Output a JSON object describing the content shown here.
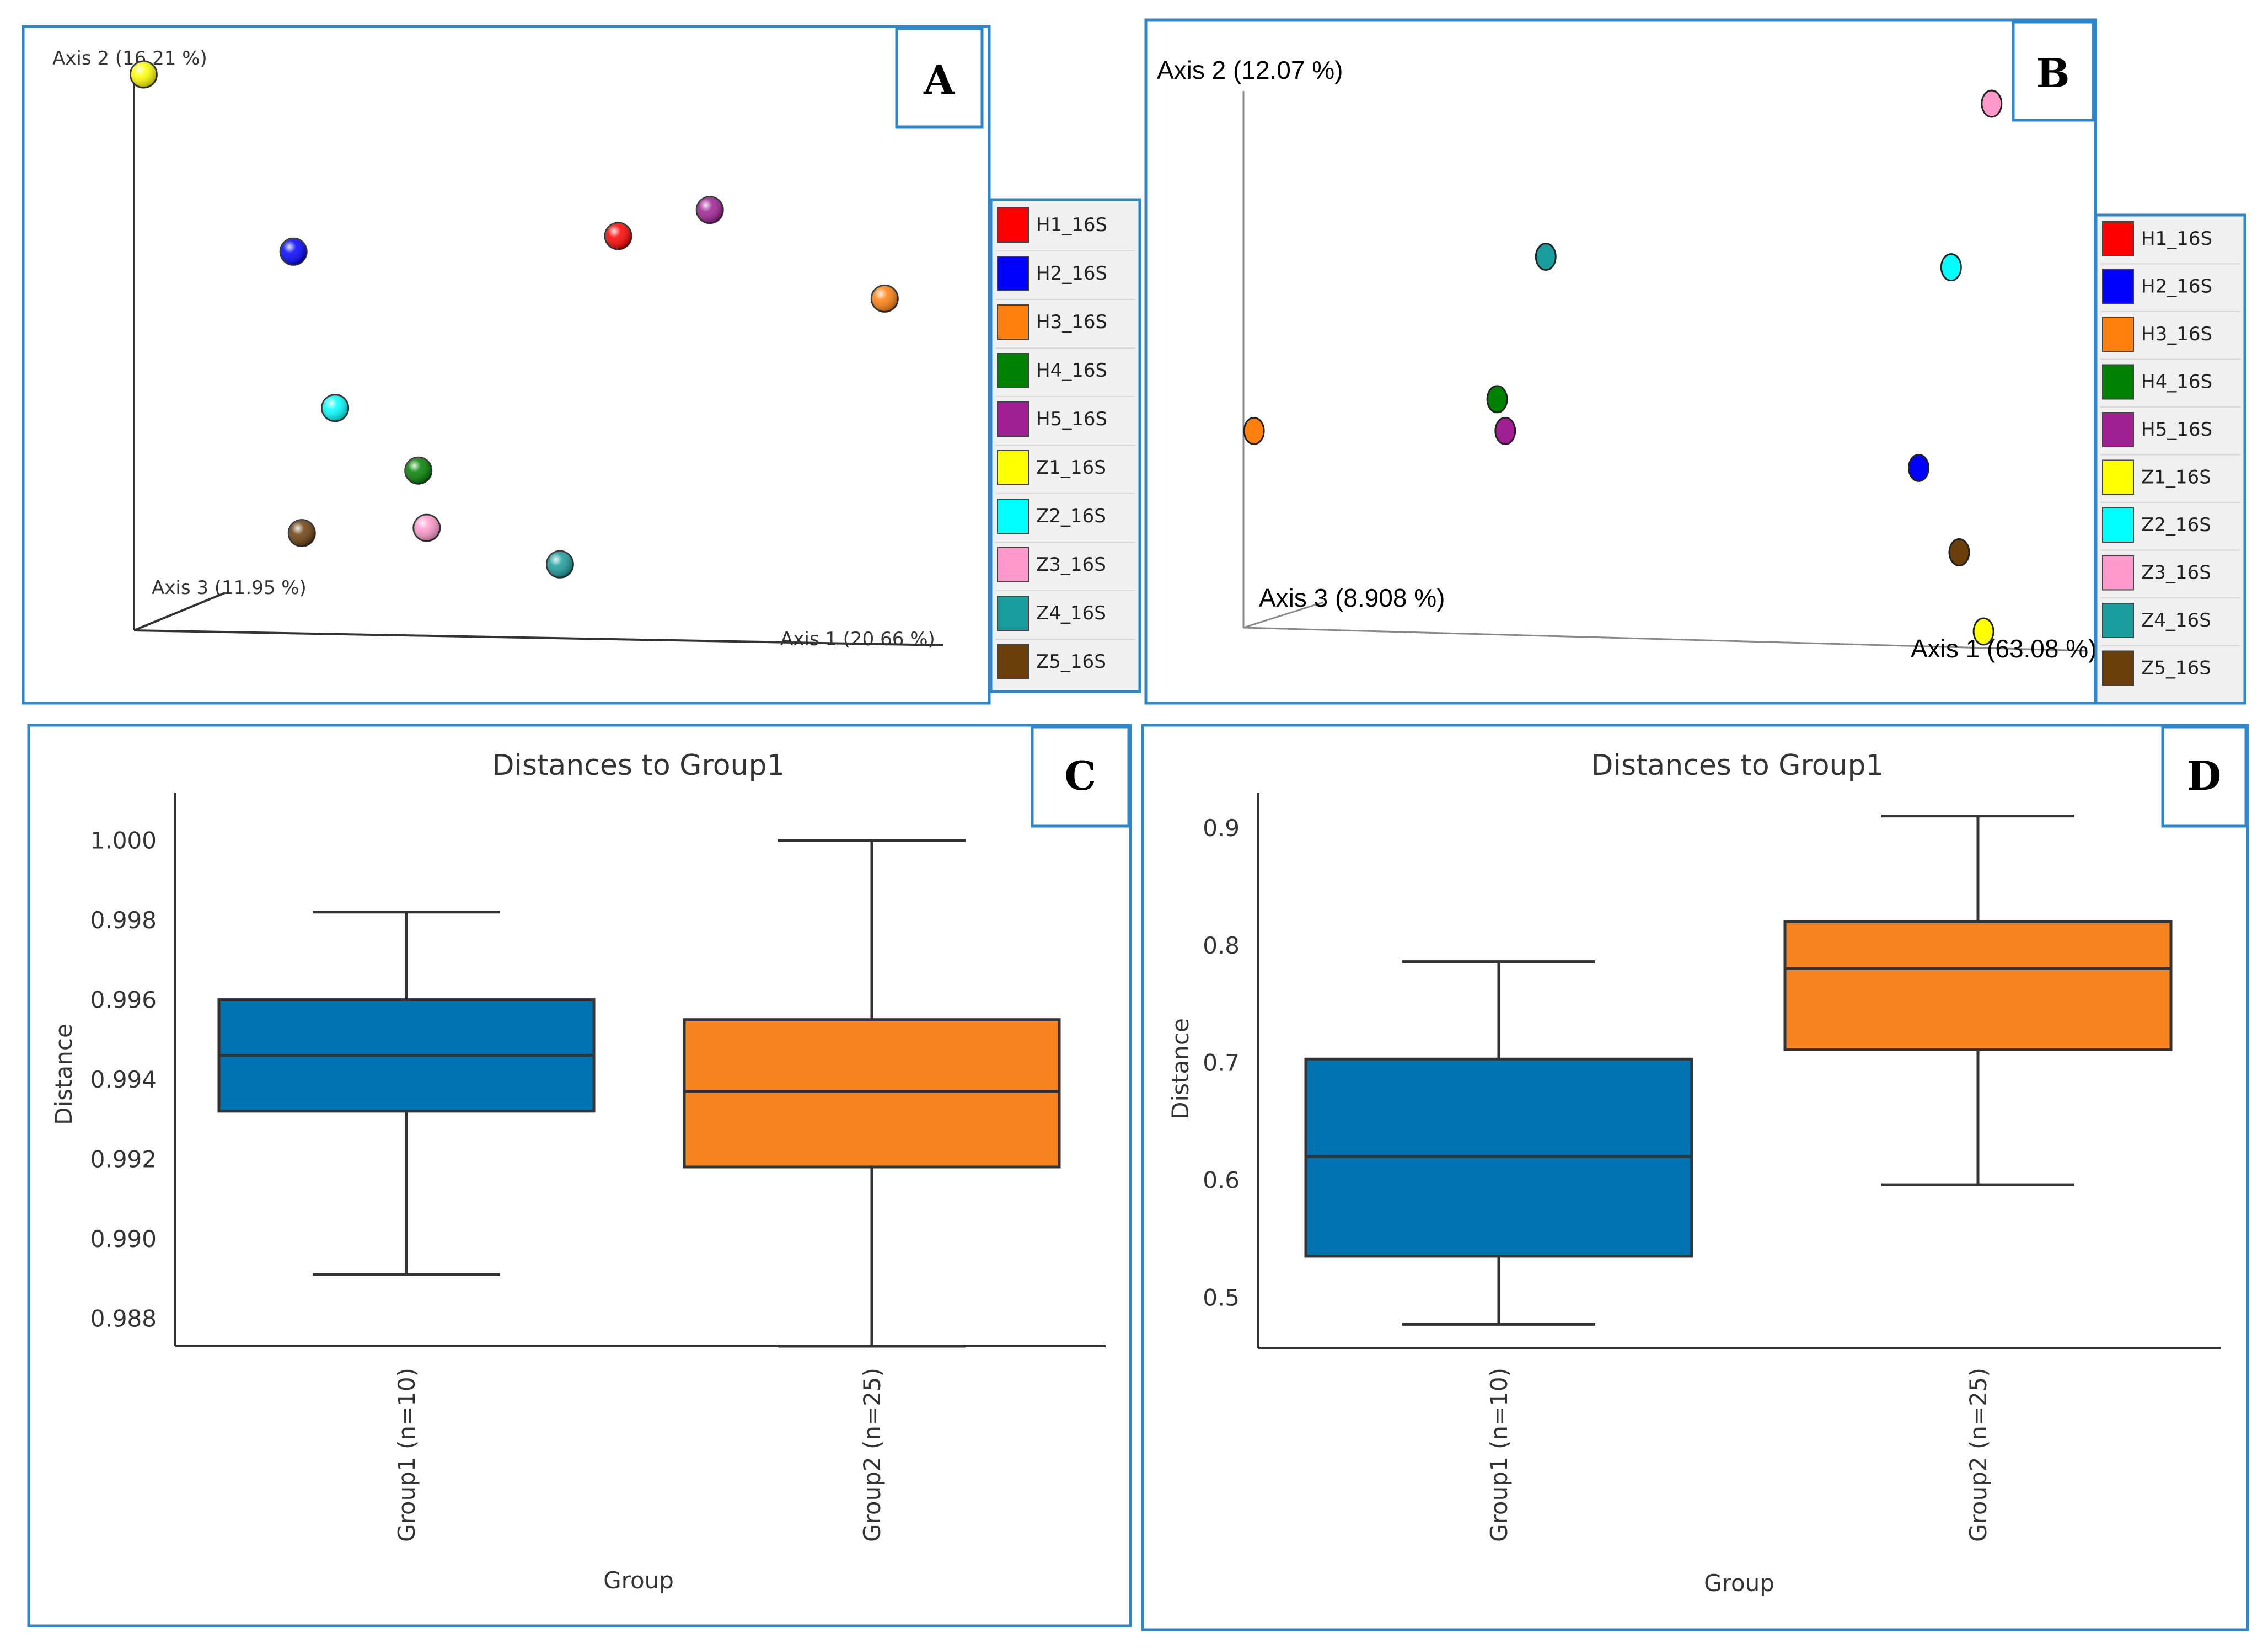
{
  "chart_data": [
    {
      "panel": "A",
      "type": "scatter",
      "kind": "pcoa-3d",
      "axis1_label": "Axis 1 (20.66 %)",
      "axis2_label": "Axis 2 (16.21 %)",
      "axis3_label": "Axis 3 (11.95 %)",
      "legend": [
        {
          "label": "H1_16S",
          "color": "#ff0000"
        },
        {
          "label": "H2_16S",
          "color": "#0000ff"
        },
        {
          "label": "H3_16S",
          "color": "#ff7f0e"
        },
        {
          "label": "H4_16S",
          "color": "#008000"
        },
        {
          "label": "H5_16S",
          "color": "#a01f92"
        },
        {
          "label": "Z1_16S",
          "color": "#ffff00"
        },
        {
          "label": "Z2_16S",
          "color": "#00ffff"
        },
        {
          "label": "Z3_16S",
          "color": "#ff99cc"
        },
        {
          "label": "Z4_16S",
          "color": "#1a9c9c"
        },
        {
          "label": "Z5_16S",
          "color": "#6b3e0c"
        }
      ],
      "points": [
        {
          "sample": "H1_16S",
          "x": 0.61,
          "y": 0.69
        },
        {
          "sample": "H2_16S",
          "x": 0.22,
          "y": 0.66
        },
        {
          "sample": "H3_16S",
          "x": 0.93,
          "y": 0.57
        },
        {
          "sample": "H4_16S",
          "x": 0.37,
          "y": 0.24
        },
        {
          "sample": "H5_16S",
          "x": 0.72,
          "y": 0.74
        },
        {
          "sample": "Z1_16S",
          "x": 0.04,
          "y": 1.0
        },
        {
          "sample": "Z2_16S",
          "x": 0.27,
          "y": 0.36
        },
        {
          "sample": "Z3_16S",
          "x": 0.38,
          "y": 0.13
        },
        {
          "sample": "Z4_16S",
          "x": 0.54,
          "y": 0.06
        },
        {
          "sample": "Z5_16S",
          "x": 0.23,
          "y": 0.12
        }
      ]
    },
    {
      "panel": "B",
      "type": "scatter",
      "kind": "pcoa-3d",
      "axis1_label": "Axis 1 (63.08 %)",
      "axis2_label": "Axis 2 (12.07 %)",
      "axis3_label": "Axis 3 (8.908 %)",
      "legend": [
        {
          "label": "H1_16S",
          "color": "#ff0000"
        },
        {
          "label": "H2_16S",
          "color": "#0000ff"
        },
        {
          "label": "H3_16S",
          "color": "#ff7f0e"
        },
        {
          "label": "H4_16S",
          "color": "#008000"
        },
        {
          "label": "H5_16S",
          "color": "#a01f92"
        },
        {
          "label": "Z1_16S",
          "color": "#ffff00"
        },
        {
          "label": "Z2_16S",
          "color": "#00ffff"
        },
        {
          "label": "Z3_16S",
          "color": "#ff99cc"
        },
        {
          "label": "Z4_16S",
          "color": "#1a9c9c"
        },
        {
          "label": "Z5_16S",
          "color": "#6b3e0c"
        }
      ],
      "points": [
        {
          "sample": "H2_16S",
          "x": 0.85,
          "y": 0.31
        },
        {
          "sample": "H3_16S",
          "x": 0.03,
          "y": 0.38
        },
        {
          "sample": "H4_16S",
          "x": 0.33,
          "y": 0.44
        },
        {
          "sample": "H5_16S",
          "x": 0.34,
          "y": 0.38
        },
        {
          "sample": "Z1_16S",
          "x": 0.93,
          "y": 0.0
        },
        {
          "sample": "Z2_16S",
          "x": 0.89,
          "y": 0.69
        },
        {
          "sample": "Z3_16S",
          "x": 0.94,
          "y": 1.0
        },
        {
          "sample": "Z4_16S",
          "x": 0.39,
          "y": 0.71
        },
        {
          "sample": "Z5_16S",
          "x": 0.9,
          "y": 0.15
        }
      ]
    },
    {
      "panel": "C",
      "type": "box",
      "title": "Distances to Group1",
      "xlabel": "Group",
      "ylabel": "Distance",
      "ylim": [
        0.9873,
        1.0012
      ],
      "yticks": [
        "1.000",
        "0.998",
        "0.996",
        "0.994",
        "0.992",
        "0.990",
        "0.988"
      ],
      "categories": [
        "Group1 (n=10)",
        "Group2 (n=25)"
      ],
      "boxes": [
        {
          "name": "Group1 (n=10)",
          "color": "#0173b2",
          "whisker_low": 0.9891,
          "q1": 0.9932,
          "median": 0.9946,
          "q3": 0.996,
          "whisker_high": 0.9982
        },
        {
          "name": "Group2 (n=25)",
          "color": "#f88321",
          "whisker_low": 0.9873,
          "q1": 0.9918,
          "median": 0.9937,
          "q3": 0.9955,
          "whisker_high": 1.0
        }
      ]
    },
    {
      "panel": "D",
      "type": "box",
      "title": "Distances to Group1",
      "xlabel": "Group",
      "ylabel": "Distance",
      "ylim": [
        0.457,
        0.93
      ],
      "yticks": [
        "0.9",
        "0.8",
        "0.7",
        "0.6",
        "0.5"
      ],
      "categories": [
        "Group1 (n=10)",
        "Group2 (n=25)"
      ],
      "boxes": [
        {
          "name": "Group1 (n=10)",
          "color": "#0173b2",
          "whisker_low": 0.477,
          "q1": 0.535,
          "median": 0.62,
          "q3": 0.703,
          "whisker_high": 0.786
        },
        {
          "name": "Group2 (n=25)",
          "color": "#f88321",
          "whisker_low": 0.596,
          "q1": 0.711,
          "median": 0.78,
          "q3": 0.82,
          "whisker_high": 0.91
        }
      ]
    }
  ]
}
